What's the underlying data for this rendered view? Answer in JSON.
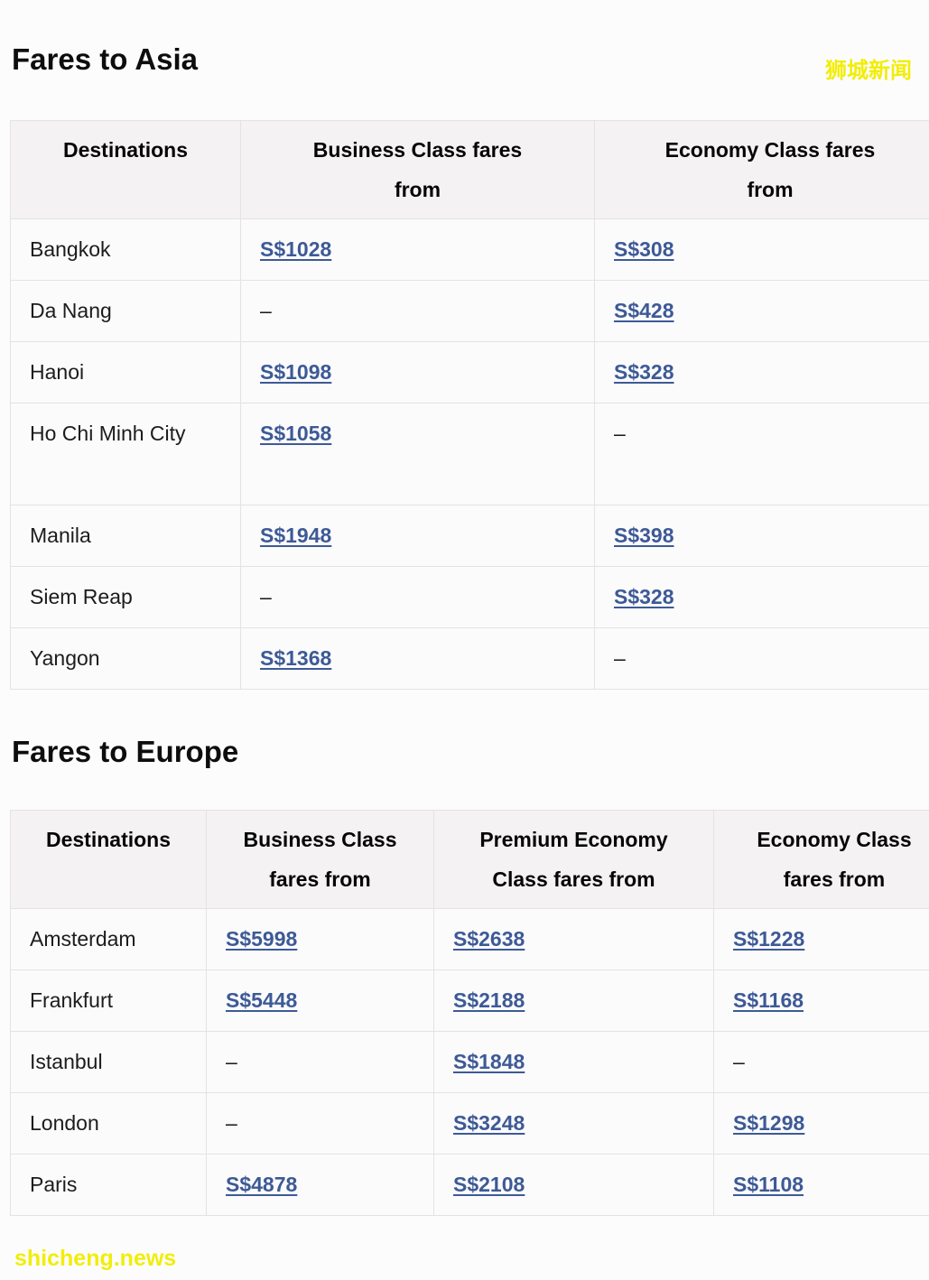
{
  "watermarks": {
    "top_right": "狮城新闻",
    "bottom_left": "shicheng.news"
  },
  "colors": {
    "fare_link": "#3d5a96",
    "watermark_yellow": "#f1ed0a",
    "header_bg": "#f4f2f3",
    "border": "#e4e2e4"
  },
  "sections": [
    {
      "title": "Fares to Asia",
      "table": {
        "columns": [
          "Destinations",
          "Business Class fares from",
          "Economy Class fares from"
        ],
        "rows": [
          {
            "cells": [
              {
                "text": "Bangkok"
              },
              {
                "text": "S$1028",
                "link": true
              },
              {
                "text": "S$308",
                "link": true
              }
            ]
          },
          {
            "cells": [
              {
                "text": "Da Nang"
              },
              {
                "text": "–"
              },
              {
                "text": "S$428",
                "link": true
              }
            ]
          },
          {
            "cells": [
              {
                "text": "Hanoi"
              },
              {
                "text": "S$1098",
                "link": true
              },
              {
                "text": "S$328",
                "link": true
              }
            ]
          },
          {
            "cells": [
              {
                "text": "Ho Chi Minh City"
              },
              {
                "text": "S$1058",
                "link": true
              },
              {
                "text": "–"
              }
            ],
            "tall": true
          },
          {
            "cells": [
              {
                "text": "Manila"
              },
              {
                "text": "S$1948",
                "link": true
              },
              {
                "text": "S$398",
                "link": true
              }
            ]
          },
          {
            "cells": [
              {
                "text": "Siem Reap"
              },
              {
                "text": "–"
              },
              {
                "text": "S$328",
                "link": true
              }
            ]
          },
          {
            "cells": [
              {
                "text": "Yangon"
              },
              {
                "text": "S$1368",
                "link": true
              },
              {
                "text": "–"
              }
            ]
          }
        ]
      }
    },
    {
      "title": "Fares to Europe",
      "table": {
        "columns": [
          "Destinations",
          "Business Class fares from",
          "Premium Economy Class fares from",
          "Economy Class fares from"
        ],
        "rows": [
          {
            "cells": [
              {
                "text": "Amsterdam"
              },
              {
                "text": "S$5998",
                "link": true
              },
              {
                "text": "S$2638",
                "link": true
              },
              {
                "text": "S$1228",
                "link": true
              }
            ]
          },
          {
            "cells": [
              {
                "text": "Frankfurt"
              },
              {
                "text": "S$5448",
                "link": true
              },
              {
                "text": "S$2188",
                "link": true
              },
              {
                "text": "S$1168",
                "link": true
              }
            ]
          },
          {
            "cells": [
              {
                "text": "Istanbul"
              },
              {
                "text": "–"
              },
              {
                "text": "S$1848",
                "link": true
              },
              {
                "text": "–"
              }
            ]
          },
          {
            "cells": [
              {
                "text": "London"
              },
              {
                "text": "–"
              },
              {
                "text": "S$3248",
                "link": true
              },
              {
                "text": "S$1298",
                "link": true
              }
            ]
          },
          {
            "cells": [
              {
                "text": "Paris"
              },
              {
                "text": "S$4878",
                "link": true
              },
              {
                "text": "S$2108",
                "link": true
              },
              {
                "text": "S$1108",
                "link": true
              }
            ]
          }
        ]
      }
    }
  ]
}
